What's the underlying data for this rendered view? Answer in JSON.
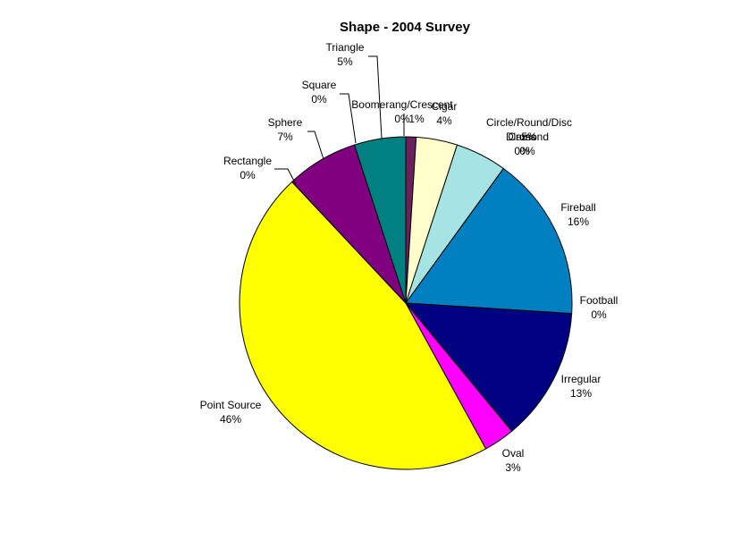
{
  "chart_data": {
    "type": "pie",
    "title": "Shape - 2004 Survey",
    "categories": [
      "Boomerang/Crescent",
      null,
      "Cigar",
      "Circle/Round/Disc",
      "Cross",
      "Diamond",
      "Fireball",
      "Football",
      "Irregular",
      "Oval",
      "Point Source",
      "Rectangle",
      "Sphere",
      "Square",
      "Triangle"
    ],
    "values": [
      0,
      1,
      4,
      5,
      0,
      0,
      16,
      0,
      13,
      3,
      46,
      0,
      7,
      0,
      5
    ],
    "value_labels": [
      "0%",
      "1%",
      "4%",
      "5%",
      "0%",
      "0%",
      "16%",
      "0%",
      "13%",
      "3%",
      "46%",
      "0%",
      "7%",
      "0%",
      "5%"
    ],
    "colors": [
      "#9999ff",
      "#6b1f5b",
      "#ffffcc",
      "#a6e3e3",
      "#660066",
      "#ff8080",
      "#0080c0",
      "#ccccff",
      "#000080",
      "#ff00ff",
      "#ffff00",
      "#00ffff",
      "#800080",
      "#800000",
      "#008080"
    ]
  }
}
